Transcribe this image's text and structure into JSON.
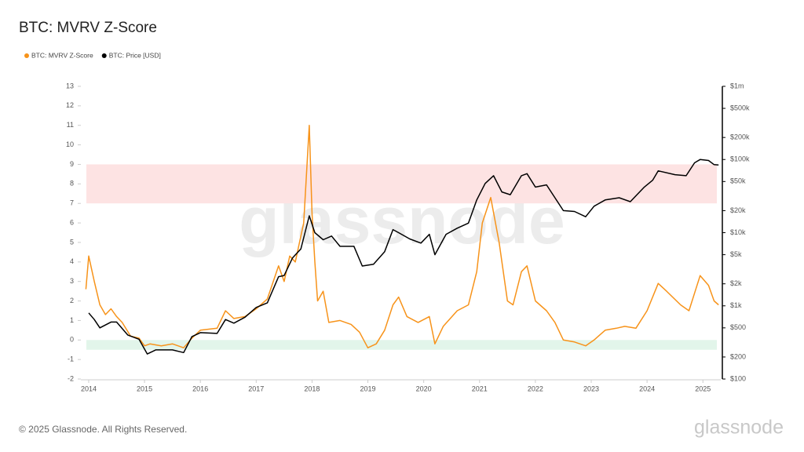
{
  "chart_data": {
    "type": "line",
    "title": "BTC: MVRV Z-Score",
    "watermark": "glassnode",
    "footer": "© 2025 Glassnode. All Rights Reserved.",
    "logo": "glassnode",
    "xlim": [
      2013.86,
      2025.32
    ],
    "xticks": [
      2014,
      2015,
      2016,
      2017,
      2018,
      2019,
      2020,
      2021,
      2022,
      2023,
      2024,
      2025
    ],
    "ylim": [
      -2,
      13
    ],
    "yticks": [
      -2,
      -1,
      0,
      1,
      2,
      3,
      4,
      5,
      6,
      7,
      8,
      9,
      10,
      11,
      12,
      13
    ],
    "y2lim": [
      100,
      1000000
    ],
    "y2log": true,
    "y2ticks": [
      {
        "value": 100,
        "label": "$100"
      },
      {
        "value": 200,
        "label": "$200"
      },
      {
        "value": 500,
        "label": "$500"
      },
      {
        "value": 1000,
        "label": "$1k"
      },
      {
        "value": 2000,
        "label": "$2k"
      },
      {
        "value": 5000,
        "label": "$5k"
      },
      {
        "value": 10000,
        "label": "$10k"
      },
      {
        "value": 20000,
        "label": "$20k"
      },
      {
        "value": 50000,
        "label": "$50k"
      },
      {
        "value": 100000,
        "label": "$100k"
      },
      {
        "value": 200000,
        "label": "$200k"
      },
      {
        "value": 500000,
        "label": "$500k"
      },
      {
        "value": 1000000,
        "label": "$1m"
      }
    ],
    "grid": false,
    "legend": "top-left",
    "bands": [
      {
        "from": 7,
        "to": 9,
        "color": "#fde3e3"
      },
      {
        "from": -0.5,
        "to": 0,
        "color": "#e2f5ea"
      }
    ],
    "series": [
      {
        "name": "BTC: MVRV Z-Score",
        "color": "#f7931a",
        "x": [
          2013.95,
          2014.0,
          2014.1,
          2014.2,
          2014.3,
          2014.4,
          2014.5,
          2014.6,
          2014.75,
          2014.9,
          2015.0,
          2015.1,
          2015.3,
          2015.5,
          2015.7,
          2015.85,
          2016.0,
          2016.3,
          2016.45,
          2016.6,
          2016.8,
          2017.0,
          2017.2,
          2017.4,
          2017.5,
          2017.6,
          2017.7,
          2017.85,
          2017.95,
          2018.0,
          2018.05,
          2018.1,
          2018.2,
          2018.3,
          2018.5,
          2018.7,
          2018.85,
          2019.0,
          2019.15,
          2019.3,
          2019.45,
          2019.55,
          2019.7,
          2019.9,
          2020.1,
          2020.2,
          2020.35,
          2020.6,
          2020.8,
          2020.95,
          2021.05,
          2021.2,
          2021.35,
          2021.5,
          2021.6,
          2021.75,
          2021.85,
          2022.0,
          2022.2,
          2022.35,
          2022.5,
          2022.7,
          2022.9,
          2023.05,
          2023.25,
          2023.45,
          2023.6,
          2023.8,
          2024.0,
          2024.2,
          2024.35,
          2024.6,
          2024.75,
          2024.95,
          2025.1,
          2025.2,
          2025.28
        ],
        "values": [
          2.6,
          4.3,
          3.0,
          1.8,
          1.3,
          1.6,
          1.2,
          0.9,
          0.2,
          0.1,
          -0.3,
          -0.2,
          -0.3,
          -0.2,
          -0.4,
          0.1,
          0.5,
          0.6,
          1.5,
          1.1,
          1.2,
          1.6,
          2.1,
          3.8,
          3.0,
          4.3,
          4.0,
          6.0,
          11.0,
          6.5,
          4.0,
          2.0,
          2.5,
          0.9,
          1.0,
          0.8,
          0.4,
          -0.4,
          -0.2,
          0.5,
          1.8,
          2.2,
          1.2,
          0.9,
          1.2,
          -0.2,
          0.7,
          1.5,
          1.8,
          3.5,
          6.0,
          7.3,
          5.0,
          2.0,
          1.8,
          3.5,
          3.8,
          2.0,
          1.5,
          0.9,
          0.0,
          -0.1,
          -0.3,
          0.0,
          0.5,
          0.6,
          0.7,
          0.6,
          1.5,
          2.9,
          2.5,
          1.8,
          1.5,
          3.3,
          2.8,
          2.0,
          1.8
        ]
      },
      {
        "name": "BTC: Price [USD]",
        "color": "#000000",
        "axis": "y2",
        "x": [
          2014.0,
          2014.1,
          2014.2,
          2014.4,
          2014.5,
          2014.7,
          2014.9,
          2015.05,
          2015.2,
          2015.5,
          2015.7,
          2015.85,
          2016.0,
          2016.3,
          2016.45,
          2016.6,
          2016.8,
          2017.0,
          2017.2,
          2017.4,
          2017.5,
          2017.65,
          2017.8,
          2017.95,
          2018.05,
          2018.2,
          2018.35,
          2018.5,
          2018.75,
          2018.9,
          2019.1,
          2019.3,
          2019.45,
          2019.55,
          2019.75,
          2019.95,
          2020.1,
          2020.2,
          2020.4,
          2020.6,
          2020.8,
          2020.95,
          2021.1,
          2021.25,
          2021.4,
          2021.55,
          2021.75,
          2021.85,
          2022.0,
          2022.2,
          2022.35,
          2022.5,
          2022.7,
          2022.9,
          2023.05,
          2023.25,
          2023.5,
          2023.7,
          2023.95,
          2024.1,
          2024.2,
          2024.5,
          2024.7,
          2024.85,
          2024.95,
          2025.1,
          2025.2,
          2025.28
        ],
        "values": [
          800,
          650,
          500,
          600,
          600,
          400,
          350,
          220,
          250,
          250,
          230,
          380,
          430,
          420,
          650,
          580,
          700,
          950,
          1100,
          2500,
          2600,
          4500,
          6000,
          17000,
          10000,
          8000,
          9000,
          6500,
          6500,
          3500,
          3700,
          5500,
          11000,
          10000,
          8200,
          7200,
          9500,
          5000,
          9500,
          11500,
          13500,
          28000,
          47000,
          60000,
          36000,
          33000,
          60000,
          64000,
          42000,
          45000,
          30000,
          20000,
          19500,
          16500,
          23000,
          28000,
          30000,
          26500,
          42000,
          52000,
          70000,
          62000,
          60000,
          90000,
          100000,
          97000,
          85000,
          84000
        ]
      }
    ]
  }
}
